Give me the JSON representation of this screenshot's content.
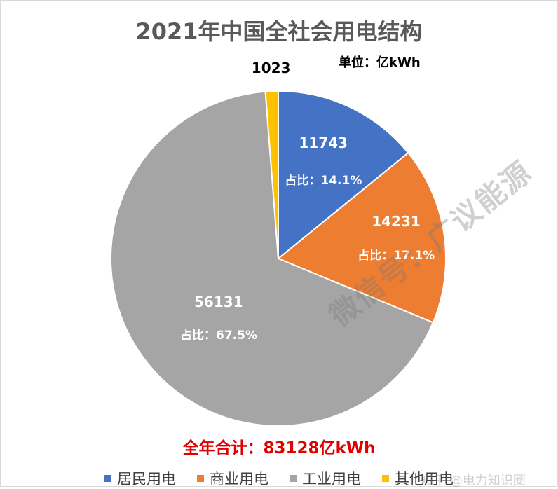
{
  "chart_data": {
    "type": "pie",
    "title": "2021年中国全社会用电结构",
    "unit_label": "单位：亿kWh",
    "categories": [
      "居民用电",
      "商业用电",
      "工业用电",
      "其他用电"
    ],
    "values": [
      11743,
      14231,
      56131,
      1023
    ],
    "value_labels": [
      "11743",
      "14231",
      "56131",
      "1023"
    ],
    "share_labels": [
      "占比：14.1%",
      "占比：17.1%",
      "占比：67.5%",
      ""
    ],
    "colors": [
      "#4472c4",
      "#ed7d31",
      "#a5a5a5",
      "#ffc000"
    ],
    "total_label": "全年合计：83128亿kWh",
    "legend_position": "bottom"
  },
  "watermark": {
    "text": "微信号：广议能源",
    "bottom_text": "知乎 @电力知识圈"
  }
}
